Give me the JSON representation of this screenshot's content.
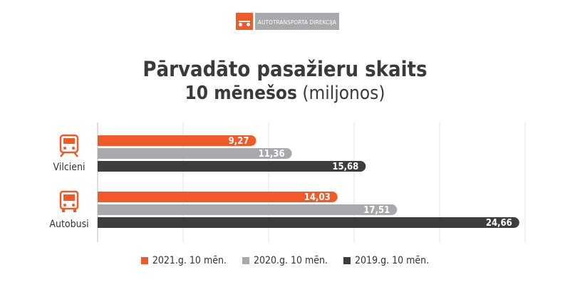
{
  "logo": {
    "text": "AUTOTRANSPORTA DIREKCIJA"
  },
  "title": {
    "line1": "Pārvadāto pasažieru skaits",
    "line2_bold": "10 mēnešos",
    "line2_rest": " (miljonos)"
  },
  "colors": {
    "2021": "#f05a28",
    "2020": "#a7a9ac",
    "2019": "#3d3d3d"
  },
  "chart_data": {
    "type": "bar",
    "orientation": "horizontal",
    "categories": [
      "Vilcieni",
      "Autobusi"
    ],
    "category_icons": [
      "train-icon",
      "bus-icon"
    ],
    "series": [
      {
        "name": "2021.g. 10 mēn.",
        "values": [
          9.27,
          14.03
        ],
        "labels": [
          "9,27",
          "14,03"
        ]
      },
      {
        "name": "2020.g. 10 mēn.",
        "values": [
          11.36,
          17.51
        ],
        "labels": [
          "11,36",
          "17,51"
        ]
      },
      {
        "name": "2019.g. 10 mēn.",
        "values": [
          15.68,
          24.66
        ],
        "labels": [
          "15,68",
          "24,66"
        ]
      }
    ],
    "xlim": [
      0,
      25
    ],
    "grid": true,
    "legend_position": "bottom"
  }
}
